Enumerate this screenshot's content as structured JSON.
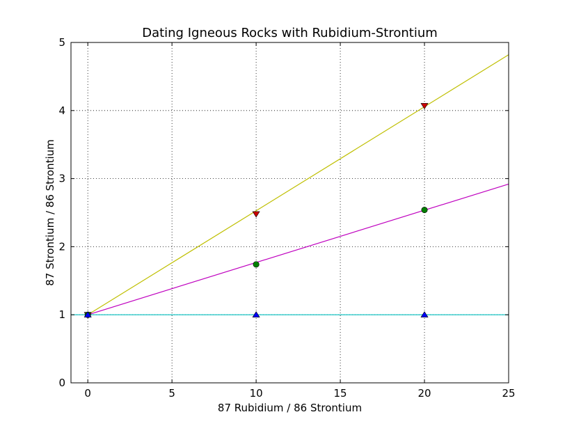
{
  "chart_data": {
    "type": "line",
    "title": "Dating Igneous Rocks with Rubidium-Strontium",
    "xlabel": "87 Rubidium / 86 Strontium",
    "ylabel": "87 Strontium / 86 Strontium",
    "xlim": [
      -1,
      25
    ],
    "ylim": [
      0,
      5
    ],
    "xticks": [
      0,
      5,
      10,
      15,
      20,
      25
    ],
    "yticks": [
      0,
      1,
      2,
      3,
      4,
      5
    ],
    "grid": true,
    "legend": "none",
    "lines": [
      {
        "color": "#bfbf00",
        "x": [
          0,
          25
        ],
        "y": [
          1.0,
          4.82
        ]
      },
      {
        "color": "#bf00bf",
        "x": [
          0,
          25
        ],
        "y": [
          1.0,
          2.92
        ]
      },
      {
        "color": "#00bfbf",
        "x": [
          -1,
          25
        ],
        "y": [
          1.0,
          1.0
        ]
      }
    ],
    "series": [
      {
        "marker": "triangle-down",
        "color": "#cc0000",
        "x": [
          0,
          10,
          20
        ],
        "y": [
          1.0,
          2.48,
          4.07
        ]
      },
      {
        "marker": "circle",
        "color": "#008000",
        "x": [
          0,
          10,
          20
        ],
        "y": [
          1.0,
          1.74,
          2.54
        ]
      },
      {
        "marker": "triangle-up",
        "color": "#0000ff",
        "x": [
          0,
          10,
          20
        ],
        "y": [
          1.0,
          1.0,
          1.0
        ]
      }
    ]
  }
}
